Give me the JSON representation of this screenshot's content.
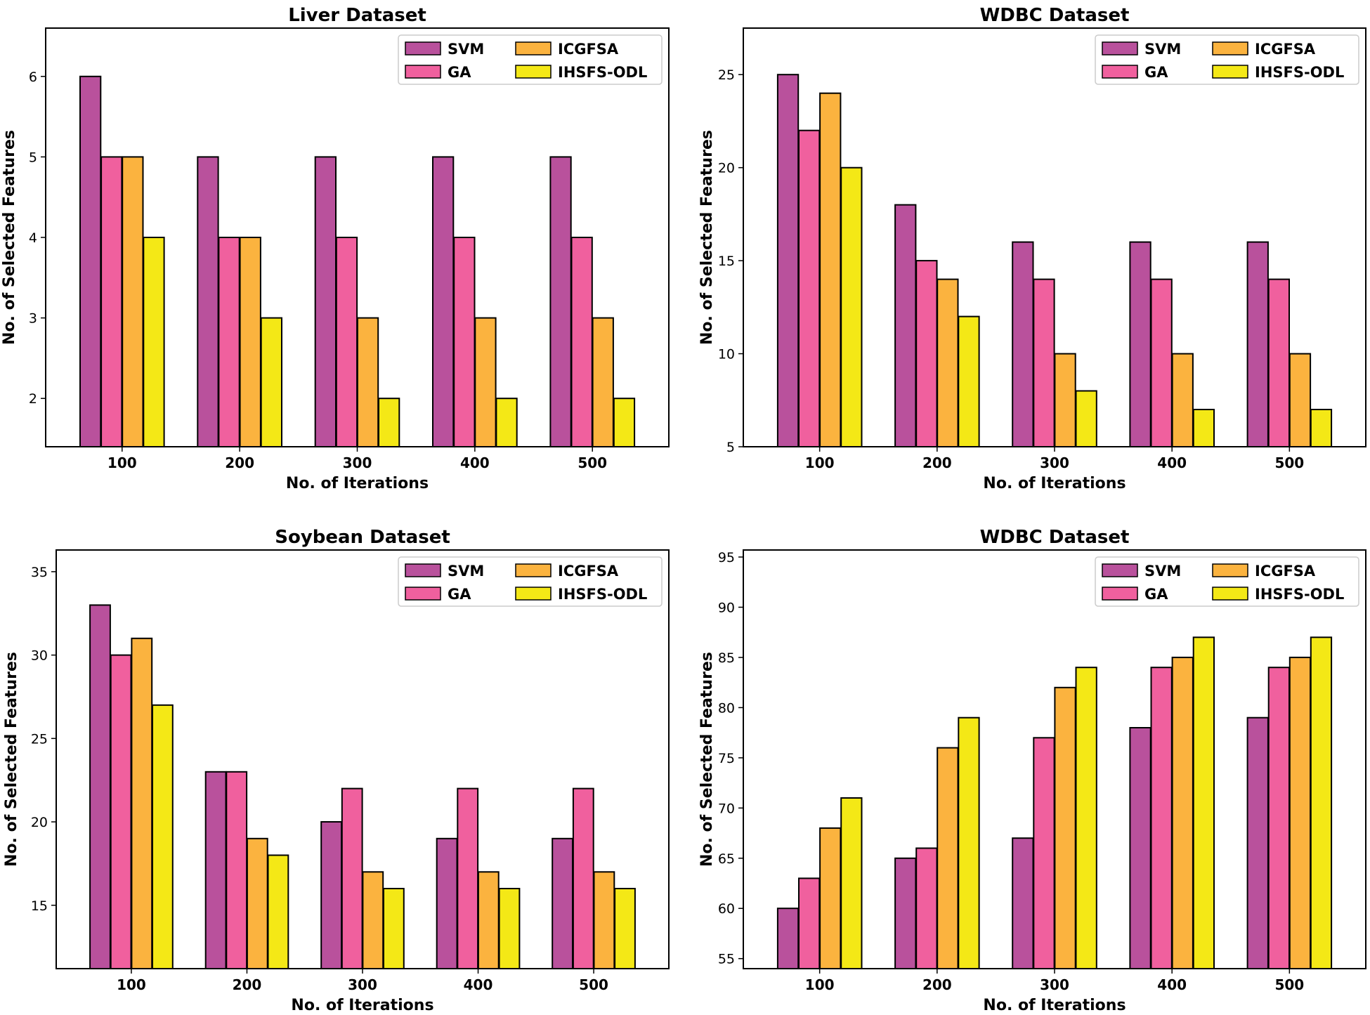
{
  "figure_title": "",
  "colors": {
    "SVM": "#b9519c",
    "GA": "#f0609e",
    "ICGFSA": "#fbb33f",
    "IHSFS-ODL": "#f4e816"
  },
  "chart_data": [
    {
      "type": "bar",
      "title": "Liver Dataset",
      "xlabel": "No. of Iterations",
      "ylabel": "No. of Selected Features",
      "categories": [
        "100",
        "200",
        "300",
        "400",
        "500"
      ],
      "ylim": [
        1.4,
        6.6
      ],
      "yticks": [
        2,
        3,
        4,
        5,
        6
      ],
      "legend_position": "top-right",
      "series": [
        {
          "name": "SVM",
          "values": [
            6,
            5,
            5,
            5,
            5
          ]
        },
        {
          "name": "GA",
          "values": [
            5,
            4,
            4,
            4,
            4
          ]
        },
        {
          "name": "ICGFSA",
          "values": [
            5,
            4,
            3,
            3,
            3
          ]
        },
        {
          "name": "IHSFS-ODL",
          "values": [
            4,
            3,
            2,
            2,
            2
          ]
        }
      ]
    },
    {
      "type": "bar",
      "title": "WDBC Dataset",
      "xlabel": "No. of Iterations",
      "ylabel": "No. of Selected Features",
      "categories": [
        "100",
        "200",
        "300",
        "400",
        "500"
      ],
      "ylim": [
        5,
        27.5
      ],
      "yticks": [
        5,
        10,
        15,
        20,
        25
      ],
      "legend_position": "top-right",
      "series": [
        {
          "name": "SVM",
          "values": [
            25,
            18,
            16,
            16,
            16
          ]
        },
        {
          "name": "GA",
          "values": [
            22,
            15,
            14,
            14,
            14
          ]
        },
        {
          "name": "ICGFSA",
          "values": [
            24,
            14,
            10,
            10,
            10
          ]
        },
        {
          "name": "IHSFS-ODL",
          "values": [
            20,
            12,
            8,
            7,
            7
          ]
        }
      ]
    },
    {
      "type": "bar",
      "title": "Soybean Dataset",
      "xlabel": "No. of Iterations",
      "ylabel": "No. of Selected Features",
      "categories": [
        "100",
        "200",
        "300",
        "400",
        "500"
      ],
      "ylim": [
        11.2,
        36.3
      ],
      "yticks": [
        15,
        20,
        25,
        30,
        35
      ],
      "legend_position": "top-right",
      "series": [
        {
          "name": "SVM",
          "values": [
            33,
            23,
            20,
            19,
            19
          ]
        },
        {
          "name": "GA",
          "values": [
            30,
            23,
            22,
            22,
            22
          ]
        },
        {
          "name": "ICGFSA",
          "values": [
            31,
            19,
            17,
            17,
            17
          ]
        },
        {
          "name": "IHSFS-ODL",
          "values": [
            27,
            18,
            16,
            16,
            16
          ]
        }
      ]
    },
    {
      "type": "bar",
      "title": "WDBC Dataset",
      "xlabel": "No. of Iterations",
      "ylabel": "No. of Selected Features",
      "categories": [
        "100",
        "200",
        "300",
        "400",
        "500"
      ],
      "ylim": [
        54,
        95.7
      ],
      "yticks": [
        55,
        60,
        65,
        70,
        75,
        80,
        85,
        90,
        95
      ],
      "legend_position": "top-right",
      "series": [
        {
          "name": "SVM",
          "values": [
            60,
            65,
            67,
            78,
            79
          ]
        },
        {
          "name": "GA",
          "values": [
            63,
            66,
            77,
            84,
            84
          ]
        },
        {
          "name": "ICGFSA",
          "values": [
            68,
            76,
            82,
            85,
            85
          ]
        },
        {
          "name": "IHSFS-ODL",
          "values": [
            71,
            79,
            84,
            87,
            87
          ]
        }
      ]
    }
  ]
}
